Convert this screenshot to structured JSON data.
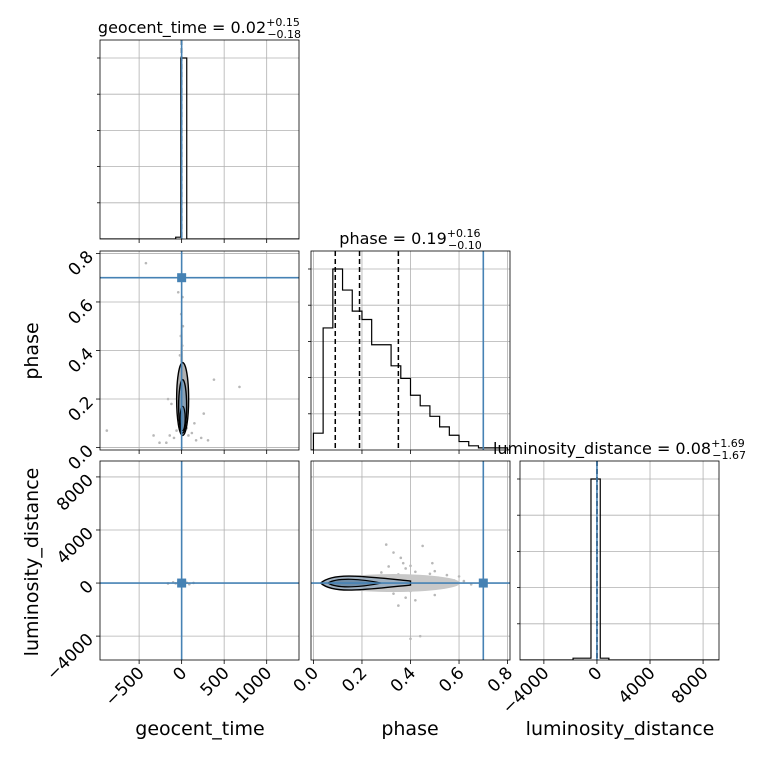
{
  "chart_data": {
    "type": "corner",
    "parameters": [
      "geocent_time",
      "phase",
      "luminosity_distance"
    ],
    "truths": {
      "geocent_time": 0,
      "phase": 0.7,
      "luminosity_distance": 0
    },
    "truth_color": "#4682b4",
    "titles": [
      {
        "name": "geocent_time",
        "median": "0.02",
        "plus": "+0.15",
        "minus": "−0.18"
      },
      {
        "name": "phase",
        "median": "0.19",
        "plus": "+0.16",
        "minus": "−0.10"
      },
      {
        "name": "luminosity_distance",
        "median": "0.08",
        "plus": "+1.69",
        "minus": "−1.67"
      }
    ],
    "axes": {
      "geocent_time": {
        "range": [
          -960,
          1380
        ],
        "ticks": [
          -500,
          0,
          500,
          1000
        ],
        "tick_labels": [
          "−500",
          "0",
          "500",
          "1000"
        ]
      },
      "phase": {
        "range": [
          -0.01,
          0.81
        ],
        "ticks": [
          0.0,
          0.2,
          0.4,
          0.6,
          0.8
        ],
        "tick_labels": [
          "0.0",
          "0.2",
          "0.4",
          "0.6",
          "0.8"
        ]
      },
      "luminosity_distance": {
        "range": [
          -5800,
          9200
        ],
        "ticks": [
          -4000,
          0,
          4000,
          8000
        ],
        "tick_labels": [
          "−4000",
          "0",
          "4000",
          "8000"
        ]
      }
    },
    "histograms": {
      "geocent_time": {
        "edges": [
          -140,
          -70,
          -10,
          60,
          130
        ],
        "counts": [
          0.0,
          0.01,
          1.0,
          0.0
        ],
        "quantiles": [
          -0.16,
          0.02,
          0.17
        ]
      },
      "phase": {
        "edges": [
          0.0,
          0.04,
          0.08,
          0.12,
          0.16,
          0.2,
          0.24,
          0.28,
          0.32,
          0.36,
          0.4,
          0.44,
          0.48,
          0.52,
          0.56,
          0.6,
          0.64,
          0.68,
          0.72,
          0.76,
          0.8
        ],
        "counts": [
          0.08,
          0.58,
          0.86,
          0.76,
          0.66,
          0.62,
          0.5,
          0.5,
          0.4,
          0.34,
          0.26,
          0.21,
          0.16,
          0.11,
          0.07,
          0.04,
          0.02,
          0.01,
          0.01,
          0.01
        ],
        "quantiles": [
          0.09,
          0.19,
          0.35
        ]
      },
      "luminosity_distance": {
        "edges": [
          -2800,
          -1800,
          -450,
          250,
          900,
          1800
        ],
        "counts": [
          0.0,
          0.01,
          1.0,
          0.01,
          0.0
        ],
        "quantiles": [
          -1.59,
          0.08,
          1.77
        ]
      }
    },
    "scatter": {
      "phase_vs_geocent_time": [
        [
          -420,
          0.76
        ],
        [
          -40,
          0.64
        ],
        [
          10,
          0.62
        ],
        [
          -5,
          0.55
        ],
        [
          15,
          0.5
        ],
        [
          -10,
          0.46
        ],
        [
          8,
          0.42
        ],
        [
          -20,
          0.38
        ],
        [
          20,
          0.33
        ],
        [
          30,
          0.3
        ],
        [
          -30,
          0.28
        ],
        [
          5,
          0.25
        ],
        [
          -8,
          0.22
        ],
        [
          25,
          0.2
        ],
        [
          -15,
          0.18
        ],
        [
          12,
          0.15
        ],
        [
          40,
          0.12
        ],
        [
          -25,
          0.1
        ],
        [
          60,
          0.08
        ],
        [
          -60,
          0.07
        ],
        [
          80,
          0.05
        ],
        [
          -90,
          0.04
        ],
        [
          120,
          0.06
        ],
        [
          -140,
          0.05
        ],
        [
          170,
          0.03
        ],
        [
          -180,
          0.02
        ],
        [
          230,
          0.04
        ],
        [
          -260,
          0.02
        ],
        [
          310,
          0.03
        ],
        [
          -330,
          0.05
        ],
        [
          380,
          0.28
        ],
        [
          680,
          0.25
        ],
        [
          -880,
          0.07
        ],
        [
          -160,
          0.2
        ],
        [
          150,
          0.1
        ],
        [
          -120,
          0.18
        ],
        [
          260,
          0.14
        ]
      ],
      "luminosity_distance_vs_geocent_time": [
        [
          -40,
          80
        ],
        [
          30,
          -60
        ],
        [
          10,
          150
        ],
        [
          -15,
          -120
        ],
        [
          60,
          30
        ],
        [
          -70,
          -20
        ],
        [
          90,
          -90
        ],
        [
          -100,
          60
        ],
        [
          140,
          10
        ],
        [
          -160,
          -30
        ],
        [
          40,
          200
        ]
      ],
      "luminosity_distance_vs_phase": [
        [
          0.3,
          2900
        ],
        [
          0.45,
          2800
        ],
        [
          0.33,
          2300
        ],
        [
          0.36,
          1900
        ],
        [
          0.4,
          1300
        ],
        [
          0.38,
          1100
        ],
        [
          0.49,
          1500
        ],
        [
          0.42,
          850
        ],
        [
          0.48,
          700
        ],
        [
          0.5,
          900
        ],
        [
          0.55,
          600
        ],
        [
          0.6,
          500
        ],
        [
          0.35,
          650
        ],
        [
          0.28,
          800
        ],
        [
          0.46,
          350
        ],
        [
          0.52,
          300
        ],
        [
          0.58,
          200
        ],
        [
          0.62,
          150
        ],
        [
          0.65,
          -100
        ],
        [
          0.4,
          -600
        ],
        [
          0.45,
          -450
        ],
        [
          0.3,
          -500
        ],
        [
          0.33,
          -800
        ],
        [
          0.38,
          -1100
        ],
        [
          0.42,
          -1300
        ],
        [
          0.5,
          -900
        ],
        [
          0.35,
          -1700
        ],
        [
          0.55,
          -250
        ],
        [
          0.43,
          500
        ],
        [
          0.37,
          450
        ],
        [
          0.41,
          -350
        ],
        [
          0.47,
          200
        ],
        [
          0.53,
          -150
        ],
        [
          0.57,
          100
        ],
        [
          0.26,
          -350
        ],
        [
          0.22,
          380
        ],
        [
          0.44,
          -4000
        ],
        [
          0.4,
          -4200
        ],
        [
          0.37,
          1500
        ],
        [
          0.31,
          1250
        ]
      ]
    },
    "xlabels": [
      "geocent_time",
      "phase",
      "luminosity_distance"
    ],
    "ylabels": [
      "phase",
      "luminosity_distance"
    ],
    "grid": true
  }
}
